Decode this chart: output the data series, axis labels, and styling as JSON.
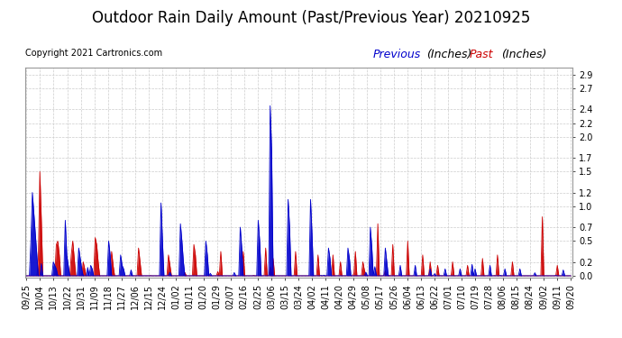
{
  "title": "Outdoor Rain Daily Amount (Past/Previous Year) 20210925",
  "copyright": "Copyright 2021 Cartronics.com",
  "legend_previous": "Previous",
  "legend_past": "Past",
  "legend_units": "(Inches)",
  "background_color": "#ffffff",
  "plot_bg_color": "#ffffff",
  "grid_color": "#cccccc",
  "previous_color": "#0000cc",
  "past_color": "#cc0000",
  "yticks": [
    0.0,
    0.2,
    0.5,
    0.7,
    1.0,
    1.2,
    1.5,
    1.7,
    2.0,
    2.2,
    2.4,
    2.7,
    2.9
  ],
  "ylim": [
    -0.02,
    3.0
  ],
  "xtick_labels": [
    "09/25",
    "10/04",
    "10/13",
    "10/22",
    "10/31",
    "11/09",
    "11/18",
    "11/27",
    "12/06",
    "12/15",
    "12/24",
    "01/02",
    "01/11",
    "01/20",
    "01/29",
    "02/07",
    "02/16",
    "02/25",
    "03/06",
    "03/15",
    "03/24",
    "04/02",
    "04/11",
    "04/20",
    "04/29",
    "05/08",
    "05/17",
    "05/26",
    "06/04",
    "06/13",
    "06/22",
    "07/01",
    "07/10",
    "07/19",
    "07/28",
    "08/06",
    "08/15",
    "08/24",
    "09/02",
    "09/11",
    "09/20"
  ],
  "n_points": 365,
  "title_fontsize": 12,
  "copyright_fontsize": 7,
  "tick_fontsize": 7,
  "legend_fontsize": 9,
  "prev_peaks_idx": [
    3,
    4,
    5,
    6,
    7,
    18,
    19,
    20,
    26,
    27,
    28,
    35,
    36,
    37,
    43,
    44,
    55,
    56,
    63,
    64,
    65,
    90,
    91,
    103,
    104,
    105,
    120,
    121,
    143,
    144,
    155,
    156,
    163,
    164,
    175,
    176,
    190,
    191,
    202,
    203,
    215,
    216,
    230,
    231,
    240,
    241,
    250,
    260,
    270,
    280,
    290,
    300,
    310,
    320,
    330
  ],
  "prev_peaks_val": [
    0.5,
    1.2,
    0.9,
    0.6,
    0.3,
    0.2,
    0.15,
    0.1,
    0.8,
    0.3,
    0.15,
    0.4,
    0.25,
    0.1,
    0.15,
    0.1,
    0.5,
    0.3,
    0.3,
    0.15,
    0.1,
    1.05,
    0.5,
    0.75,
    0.5,
    0.2,
    0.5,
    0.3,
    0.7,
    0.4,
    0.8,
    0.5,
    2.45,
    1.8,
    1.1,
    0.7,
    1.1,
    0.6,
    0.4,
    0.25,
    0.4,
    0.25,
    0.7,
    0.4,
    0.4,
    0.2,
    0.15,
    0.15,
    0.1,
    0.1,
    0.1,
    0.1,
    0.15,
    0.1,
    0.1
  ],
  "past_peaks_idx": [
    8,
    9,
    10,
    20,
    21,
    22,
    30,
    31,
    32,
    38,
    39,
    46,
    47,
    48,
    57,
    58,
    75,
    76,
    95,
    96,
    112,
    113,
    130,
    145,
    160,
    165,
    180,
    195,
    205,
    210,
    220,
    225,
    235,
    245,
    255,
    265,
    270,
    275,
    285,
    295,
    305,
    315,
    325,
    345,
    355
  ],
  "past_peaks_val": [
    0.25,
    1.5,
    0.8,
    0.45,
    0.5,
    0.3,
    0.3,
    0.5,
    0.25,
    0.2,
    0.1,
    0.55,
    0.45,
    0.2,
    0.35,
    0.15,
    0.4,
    0.2,
    0.3,
    0.15,
    0.45,
    0.3,
    0.35,
    0.35,
    0.4,
    0.25,
    0.35,
    0.3,
    0.3,
    0.2,
    0.35,
    0.2,
    0.75,
    0.45,
    0.5,
    0.3,
    0.2,
    0.15,
    0.2,
    0.15,
    0.25,
    0.3,
    0.2,
    0.85,
    0.15
  ]
}
